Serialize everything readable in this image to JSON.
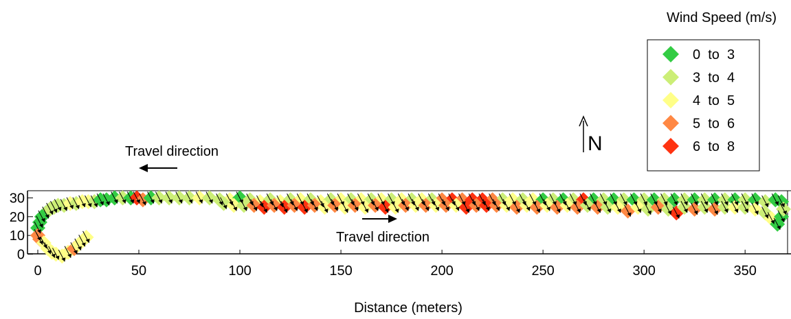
{
  "chart_data": {
    "type": "scatter",
    "title": "",
    "xlabel": "Distance (meters)",
    "ylabel": "",
    "xlim": [
      0,
      370
    ],
    "ylim": [
      -2,
      32
    ],
    "x_ticks": [
      "0",
      "50",
      "100",
      "150",
      "200",
      "250",
      "300",
      "350"
    ],
    "y_ticks": [
      "0",
      "10",
      "20",
      "30"
    ],
    "grid": false,
    "legend": {
      "title": "Wind Speed (m/s)",
      "placement": "top-right",
      "entries": [
        {
          "label": "0  to  3",
          "color": "#33cc44"
        },
        {
          "label": "3  to  4",
          "color": "#ccee77"
        },
        {
          "label": "4  to  5",
          "color": "#ffff88"
        },
        {
          "label": "5  to  6",
          "color": "#ff8844"
        },
        {
          "label": "6  to  8",
          "color": "#ff3311"
        }
      ]
    },
    "annotations": {
      "travel_back": "Travel direction",
      "travel_out": "Travel direction",
      "north": "N"
    },
    "marker": "diamond",
    "arrow_direction_note": "black wind arrows pointing south-east",
    "points": [
      [
        0,
        14,
        0
      ],
      [
        1,
        17,
        0
      ],
      [
        2,
        20,
        0
      ],
      [
        4,
        22,
        0
      ],
      [
        6,
        24,
        1
      ],
      [
        8,
        25,
        1
      ],
      [
        10,
        26,
        1
      ],
      [
        13,
        26,
        1
      ],
      [
        16,
        27,
        2
      ],
      [
        19,
        27,
        1
      ],
      [
        22,
        28,
        2
      ],
      [
        25,
        28,
        2
      ],
      [
        28,
        28,
        1
      ],
      [
        31,
        29,
        0
      ],
      [
        34,
        29,
        0
      ],
      [
        38,
        30,
        0
      ],
      [
        42,
        30,
        1
      ],
      [
        46,
        30,
        0
      ],
      [
        49,
        30,
        4
      ],
      [
        52,
        29,
        3
      ],
      [
        56,
        30,
        0
      ],
      [
        60,
        30,
        1
      ],
      [
        65,
        30,
        1
      ],
      [
        70,
        30,
        1
      ],
      [
        75,
        30,
        1
      ],
      [
        80,
        30,
        2
      ],
      [
        85,
        30,
        1
      ],
      [
        90,
        29,
        1
      ],
      [
        95,
        29,
        2
      ],
      [
        100,
        30,
        0
      ],
      [
        105,
        29,
        1
      ],
      [
        110,
        28,
        2
      ],
      [
        115,
        29,
        1
      ],
      [
        120,
        28,
        2
      ],
      [
        125,
        29,
        1
      ],
      [
        130,
        29,
        2
      ],
      [
        135,
        29,
        1
      ],
      [
        140,
        28,
        2
      ],
      [
        145,
        29,
        1
      ],
      [
        150,
        29,
        2
      ],
      [
        155,
        29,
        1
      ],
      [
        160,
        29,
        2
      ],
      [
        165,
        29,
        1
      ],
      [
        170,
        29,
        2
      ],
      [
        175,
        29,
        1
      ],
      [
        180,
        29,
        2
      ],
      [
        185,
        29,
        1
      ],
      [
        190,
        29,
        2
      ],
      [
        195,
        29,
        1
      ],
      [
        200,
        29,
        3
      ],
      [
        205,
        29,
        4
      ],
      [
        210,
        29,
        3
      ],
      [
        215,
        29,
        4
      ],
      [
        220,
        29,
        4
      ],
      [
        225,
        29,
        3
      ],
      [
        230,
        29,
        1
      ],
      [
        235,
        29,
        2
      ],
      [
        240,
        29,
        1
      ],
      [
        245,
        29,
        2
      ],
      [
        250,
        29,
        0
      ],
      [
        255,
        29,
        1
      ],
      [
        260,
        29,
        0
      ],
      [
        265,
        29,
        1
      ],
      [
        270,
        29,
        4
      ],
      [
        275,
        29,
        0
      ],
      [
        280,
        29,
        1
      ],
      [
        285,
        29,
        0
      ],
      [
        290,
        29,
        1
      ],
      [
        295,
        29,
        0
      ],
      [
        300,
        29,
        1
      ],
      [
        305,
        29,
        0
      ],
      [
        310,
        29,
        1
      ],
      [
        315,
        29,
        0
      ],
      [
        320,
        29,
        1
      ],
      [
        325,
        29,
        0
      ],
      [
        330,
        29,
        1
      ],
      [
        335,
        29,
        0
      ],
      [
        340,
        29,
        1
      ],
      [
        345,
        29,
        0
      ],
      [
        350,
        29,
        1
      ],
      [
        355,
        29,
        0
      ],
      [
        360,
        28,
        1
      ],
      [
        365,
        29,
        0
      ],
      [
        368,
        28,
        0
      ],
      [
        92,
        27,
        1
      ],
      [
        97,
        26,
        2
      ],
      [
        102,
        26,
        1
      ],
      [
        107,
        26,
        3
      ],
      [
        112,
        25,
        4
      ],
      [
        117,
        26,
        3
      ],
      [
        122,
        25,
        4
      ],
      [
        127,
        26,
        3
      ],
      [
        132,
        25,
        4
      ],
      [
        137,
        26,
        3
      ],
      [
        142,
        25,
        2
      ],
      [
        147,
        26,
        3
      ],
      [
        152,
        25,
        2
      ],
      [
        157,
        26,
        3
      ],
      [
        162,
        25,
        2
      ],
      [
        167,
        26,
        3
      ],
      [
        172,
        25,
        4
      ],
      [
        177,
        25,
        2
      ],
      [
        182,
        26,
        3
      ],
      [
        187,
        26,
        2
      ],
      [
        192,
        26,
        3
      ],
      [
        197,
        26,
        2
      ],
      [
        202,
        26,
        3
      ],
      [
        207,
        26,
        2
      ],
      [
        212,
        25,
        4
      ],
      [
        217,
        26,
        3
      ],
      [
        222,
        26,
        4
      ],
      [
        227,
        26,
        3
      ],
      [
        232,
        26,
        2
      ],
      [
        237,
        25,
        3
      ],
      [
        242,
        26,
        2
      ],
      [
        247,
        25,
        3
      ],
      [
        252,
        26,
        2
      ],
      [
        257,
        25,
        3
      ],
      [
        262,
        26,
        2
      ],
      [
        267,
        25,
        3
      ],
      [
        272,
        26,
        1
      ],
      [
        277,
        25,
        3
      ],
      [
        282,
        25,
        1
      ],
      [
        287,
        25,
        2
      ],
      [
        292,
        23,
        3
      ],
      [
        297,
        25,
        2
      ],
      [
        302,
        24,
        1
      ],
      [
        307,
        25,
        3
      ],
      [
        312,
        24,
        1
      ],
      [
        316,
        22,
        4
      ],
      [
        320,
        25,
        1
      ],
      [
        325,
        24,
        3
      ],
      [
        330,
        25,
        1
      ],
      [
        335,
        24,
        3
      ],
      [
        340,
        25,
        1
      ],
      [
        345,
        25,
        2
      ],
      [
        350,
        25,
        1
      ],
      [
        355,
        24,
        2
      ],
      [
        360,
        22,
        1
      ],
      [
        363,
        19,
        2
      ],
      [
        366,
        16,
        0
      ],
      [
        368,
        20,
        0
      ],
      [
        369,
        24,
        1
      ],
      [
        0,
        10,
        3
      ],
      [
        1,
        8,
        3
      ],
      [
        3,
        6,
        2
      ],
      [
        5,
        3,
        2
      ],
      [
        7,
        1,
        2
      ],
      [
        9,
        0,
        2
      ],
      [
        12,
        -1,
        2
      ],
      [
        15,
        1,
        2
      ],
      [
        18,
        3,
        3
      ],
      [
        20,
        5,
        2
      ],
      [
        22,
        7,
        2
      ],
      [
        24,
        9,
        2
      ]
    ]
  }
}
